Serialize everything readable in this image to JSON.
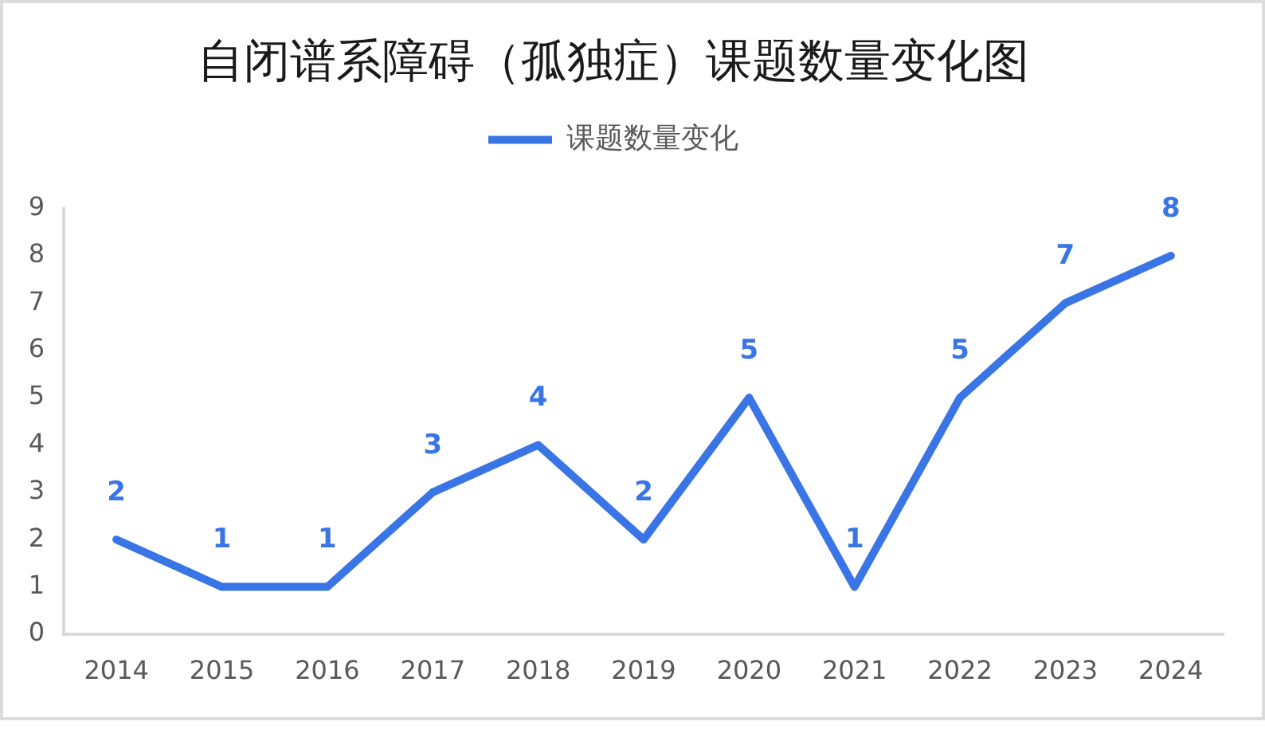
{
  "chart_data": {
    "type": "line",
    "title": "自闭谱系障碍（孤独症）课题数量变化图",
    "categories": [
      "2014",
      "2015",
      "2016",
      "2017",
      "2018",
      "2019",
      "2020",
      "2021",
      "2022",
      "2023",
      "2024"
    ],
    "series": [
      {
        "name": "课题数量变化",
        "color": "#3a75e6",
        "values": [
          2,
          1,
          1,
          3,
          4,
          2,
          5,
          1,
          5,
          7,
          8
        ]
      }
    ],
    "ylim": [
      0,
      9
    ],
    "yticks": [
      0,
      1,
      2,
      3,
      4,
      5,
      6,
      7,
      8,
      9
    ],
    "grid": false,
    "legend": "top",
    "marker": "none",
    "line_style": "solid",
    "data_labels": true
  }
}
